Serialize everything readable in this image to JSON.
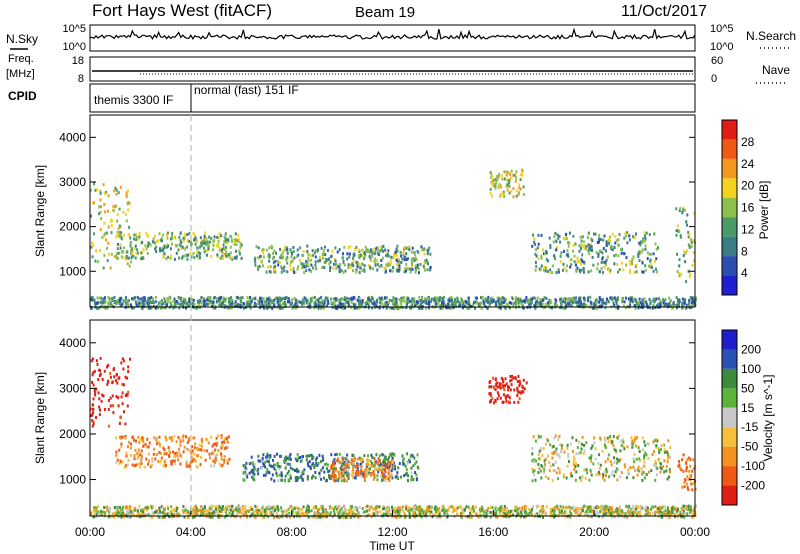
{
  "header": {
    "title": "Fort Hays West (fitACF)",
    "beam": "Beam 19",
    "date": "11/Oct/2017"
  },
  "status_panels": {
    "nsky_label": "N.Sky",
    "nsearch_label": "N.Search",
    "noise_ticks_left": [
      "10^5",
      "10^0"
    ],
    "noise_ticks_right": [
      "10^5",
      "10^0"
    ],
    "freq_label": "Freq.",
    "freq_unit": "[MHz]",
    "freq_ticks": [
      "18",
      "8"
    ],
    "nave_label": "Nave",
    "nave_ticks": [
      "60",
      "0"
    ],
    "cpid_label": "CPID",
    "cpid_modes": [
      {
        "label": "themis 3300 IF",
        "start_hour": 0.0,
        "end_hour": 4.0
      },
      {
        "label": "normal (fast) 151 IF",
        "start_hour": 4.0,
        "end_hour": 24.0
      }
    ]
  },
  "colors": {
    "power_scale": [
      "#1e1ed2",
      "#2a4fb0",
      "#3a7d86",
      "#4a9a6a",
      "#8cc04a",
      "#f4d21e",
      "#f39a1e",
      "#f05a14",
      "#e01e14"
    ],
    "velocity_scale": [
      "#e01e14",
      "#f05a14",
      "#f3921e",
      "#f7c03a",
      "#c8c8c8",
      "#5ab43a",
      "#3c8c3c",
      "#2a52b4",
      "#1e1ecc"
    ],
    "cpid_divider": "#bbbbbb"
  },
  "chart_data": [
    {
      "type": "heatmap",
      "panel": "power",
      "xlabel": "",
      "ylabel": "Slant Range [km]",
      "xlim": [
        0,
        24
      ],
      "ylim": [
        200,
        4500
      ],
      "yticks": [
        "1000",
        "2000",
        "3000",
        "4000"
      ],
      "colorbar": {
        "label": "Power [dB]",
        "range": [
          0,
          32
        ],
        "ticks": [
          "4",
          "8",
          "12",
          "16",
          "20",
          "24",
          "28"
        ]
      },
      "features": [
        {
          "name": "early-echo-column",
          "t": [
            0.0,
            1.6
          ],
          "range_km": [
            1100,
            3000
          ],
          "level_db": 18
        },
        {
          "name": "dawn-arc",
          "t": [
            1.0,
            6.0
          ],
          "range_km": [
            1300,
            1900
          ],
          "level_db": 14
        },
        {
          "name": "midday-band",
          "t": [
            6.5,
            13.5
          ],
          "range_km": [
            1000,
            1600
          ],
          "level_db": 12
        },
        {
          "name": "afternoon-patch",
          "t": [
            15.8,
            17.2
          ],
          "range_km": [
            2700,
            3300
          ],
          "level_db": 18
        },
        {
          "name": "evening-band",
          "t": [
            17.5,
            22.5
          ],
          "range_km": [
            1000,
            1900
          ],
          "level_db": 12
        },
        {
          "name": "late-echo",
          "t": [
            23.2,
            24.0
          ],
          "range_km": [
            800,
            2500
          ],
          "level_db": 14
        },
        {
          "name": "near-range-clutter",
          "t": [
            0.0,
            24.0
          ],
          "range_km": [
            200,
            450
          ],
          "level_db": 10
        }
      ]
    },
    {
      "type": "heatmap",
      "panel": "velocity",
      "xlabel": "Time UT",
      "ylabel": "Slant Range [km]",
      "xlim": [
        0,
        24
      ],
      "ylim": [
        200,
        4500
      ],
      "xticks": [
        "00:00",
        "04:00",
        "08:00",
        "12:00",
        "16:00",
        "20:00",
        "00:00"
      ],
      "yticks": [
        "1000",
        "2000",
        "3000",
        "4000"
      ],
      "colorbar": {
        "label": "Velocity [m s^-1]",
        "ticks": [
          "200",
          "100",
          "50",
          "15",
          "-15",
          "-50",
          "-100",
          "-200"
        ]
      },
      "features": [
        {
          "name": "early-red-flows",
          "t": [
            0.0,
            1.6
          ],
          "range_km": [
            2200,
            3700
          ],
          "velocity": -200
        },
        {
          "name": "dawn-orange-arc",
          "t": [
            1.0,
            5.5
          ],
          "range_km": [
            1300,
            2000
          ],
          "velocity": -60
        },
        {
          "name": "green-band",
          "t": [
            6.0,
            13.0
          ],
          "range_km": [
            1000,
            1600
          ],
          "velocity": 60
        },
        {
          "name": "orange-band",
          "t": [
            9.5,
            12.0
          ],
          "range_km": [
            1000,
            1500
          ],
          "velocity": -60
        },
        {
          "name": "afternoon-red-patch",
          "t": [
            15.8,
            17.3
          ],
          "range_km": [
            2700,
            3300
          ],
          "velocity": -200
        },
        {
          "name": "evening-grey-band",
          "t": [
            17.5,
            23.0
          ],
          "range_km": [
            1000,
            2000
          ],
          "velocity": 0
        },
        {
          "name": "late-orange-flows",
          "t": [
            23.3,
            24.0
          ],
          "range_km": [
            800,
            1700
          ],
          "velocity": -80
        },
        {
          "name": "near-range-ground-scatter",
          "t": [
            0.0,
            24.0
          ],
          "range_km": [
            200,
            450
          ],
          "velocity": 0
        }
      ]
    }
  ]
}
